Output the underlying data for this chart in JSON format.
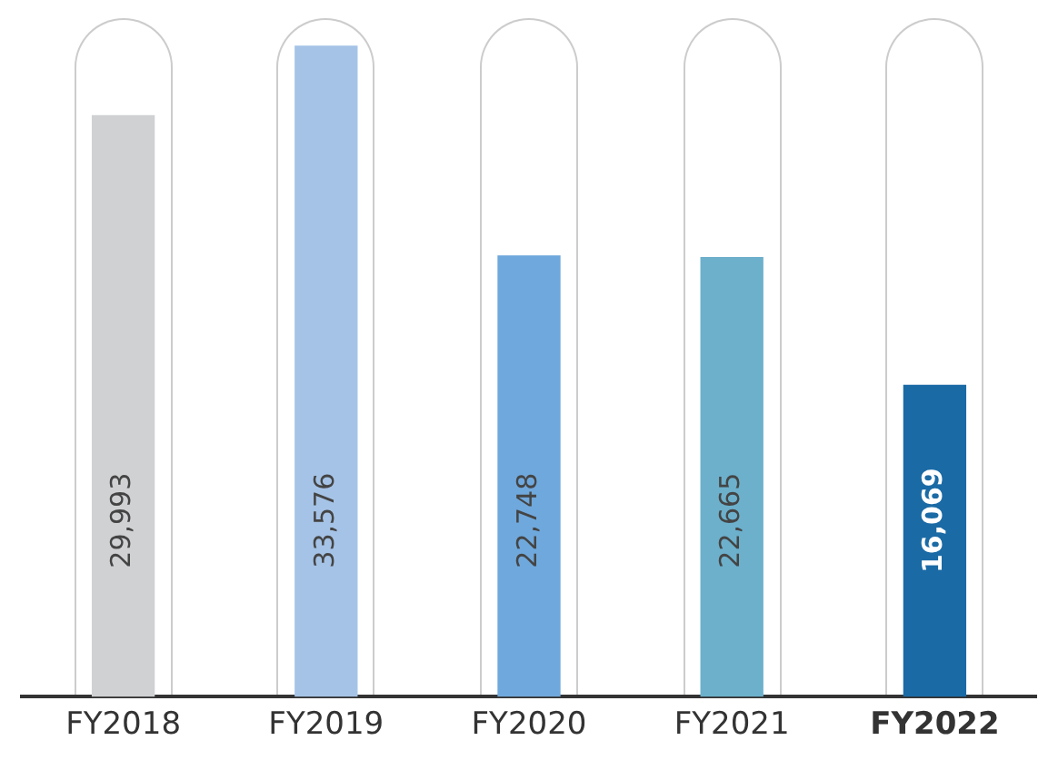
{
  "chart_data": {
    "type": "bar",
    "categories": [
      "FY2018",
      "FY2019",
      "FY2020",
      "FY2021",
      "FY2022"
    ],
    "values": [
      29993,
      33576,
      22748,
      22665,
      16069
    ],
    "colors": [
      "#d0d1d3",
      "#a5c3e6",
      "#6fa8dc",
      "#6cb0cc",
      "#1a6aa5"
    ],
    "value_labels": [
      "29,993",
      "33,576",
      "22,748",
      "22,665",
      "16,069"
    ],
    "grid": false,
    "legend": false
  }
}
